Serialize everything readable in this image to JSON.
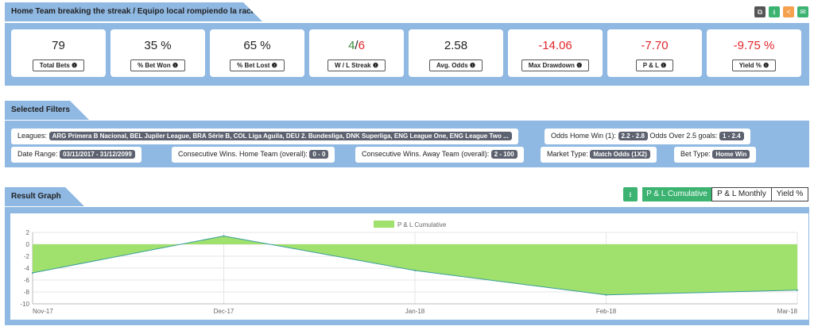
{
  "header": {
    "title": "Home Team breaking the streak / Equipo local rompiendo la racha",
    "icons": [
      {
        "name": "copy-icon",
        "color": "#555555",
        "glyph": "⧉"
      },
      {
        "name": "download-icon",
        "color": "#3cb371",
        "glyph": "⭳"
      },
      {
        "name": "share-icon",
        "color": "#f5a14e",
        "glyph": "<"
      },
      {
        "name": "email-icon",
        "color": "#3cb371",
        "glyph": "✉"
      }
    ]
  },
  "stats": [
    {
      "value": "79",
      "label": "Total Bets ❶"
    },
    {
      "value": "35 %",
      "label": "% Bet Won ❶"
    },
    {
      "value": "65 %",
      "label": "% Bet Lost ❶"
    },
    {
      "value_win": "4",
      "sep": "/",
      "value_loss": "6",
      "label": "W / L Streak ❶"
    },
    {
      "value": "2.58",
      "label": "Avg. Odds ❶"
    },
    {
      "value": "-14.06",
      "label": "Max Drawdown ❶"
    },
    {
      "value": "-7.70",
      "label": "P & L ❶"
    },
    {
      "value": "-9.75 %",
      "label": "Yield % ❶"
    }
  ],
  "filters": {
    "title": "Selected Filters",
    "leagues_label": "Leagues:",
    "leagues": "ARG Primera B Nacional, BEL Jupiler League, BRA Série B, COL Liga Aguila, DEU 2. Bundesliga, DNK Superliga, ENG League One, ENG League Two ...",
    "odds_home_label": "Odds Home Win (1):",
    "odds_home": "2.2 - 2.8",
    "odds_over_label": "Odds Over 2.5 goals:",
    "odds_over": "1 - 2.4",
    "date_label": "Date Range:",
    "date": "03/11/2017 - 31/12/2099",
    "cons_home_label": "Consecutive Wins. Home Team (overall):",
    "cons_home": "0 - 0",
    "cons_away_label": "Consecutive Wins. Away Team (overall):",
    "cons_away": "2 - 100",
    "market_label": "Market Type:",
    "market": "Match Odds (1X2)",
    "bet_label": "Bet Type:",
    "bet": "Home Win"
  },
  "graph": {
    "title": "Result Graph",
    "buttons": [
      "P & L Cumulative",
      "P & L Monthly",
      "Yield %"
    ],
    "active": 0
  },
  "chart_data": {
    "type": "area",
    "x": [
      "Nov-17",
      "Dec-17",
      "Jan-18",
      "Feb-18",
      "Mar-18"
    ],
    "series": [
      {
        "name": "P & L Cumulative",
        "values": [
          -4.8,
          1.4,
          -4.4,
          -8.5,
          -7.7
        ]
      }
    ],
    "ylim": [
      -10,
      2
    ],
    "yticks": [
      2,
      0,
      -2,
      -4,
      -6,
      -8,
      -10
    ],
    "grid": true,
    "legend": "top",
    "fill": "#a0e06c",
    "line": "#3a9e9e"
  }
}
